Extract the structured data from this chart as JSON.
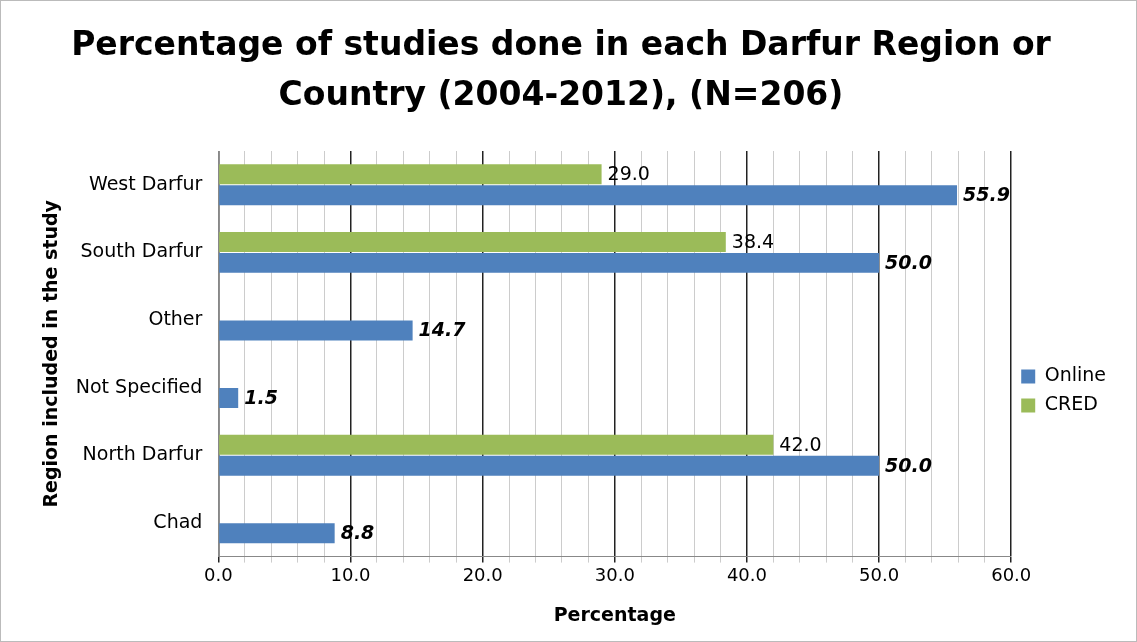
{
  "chart_data": {
    "type": "bar",
    "orientation": "horizontal",
    "title": "Percentage of studies done in each Darfur Region or Country (2004-2012), (N=206)",
    "xlabel": "Percentage",
    "ylabel": "Region included in the study",
    "categories": [
      "West Darfur",
      "South Darfur",
      "Other",
      "Not Specified",
      "North Darfur",
      "Chad"
    ],
    "series": [
      {
        "name": "CRED",
        "color": "#9bbb59",
        "values": [
          29.0,
          38.4,
          null,
          null,
          42.0,
          null
        ],
        "value_labels": [
          "29.0",
          "38.4",
          null,
          null,
          "42.0",
          null
        ]
      },
      {
        "name": "Online",
        "color": "#4f81bd",
        "values": [
          55.9,
          50.0,
          14.7,
          1.5,
          50.0,
          8.8
        ],
        "value_labels": [
          "55.9",
          "50.0",
          "14.7",
          "1.5",
          "50.0",
          "8.8"
        ]
      }
    ],
    "xlim": [
      0,
      60
    ],
    "xticks": [
      {
        "value": 0,
        "label": "0.0"
      },
      {
        "value": 2,
        "label": null
      },
      {
        "value": 4,
        "label": null
      },
      {
        "value": 6,
        "label": null
      },
      {
        "value": 8,
        "label": null
      },
      {
        "value": 10,
        "label": "10.0"
      },
      {
        "value": 12,
        "label": null
      },
      {
        "value": 14,
        "label": null
      },
      {
        "value": 16,
        "label": null
      },
      {
        "value": 18,
        "label": null
      },
      {
        "value": 20,
        "label": "20.0"
      },
      {
        "value": 22,
        "label": null
      },
      {
        "value": 24,
        "label": null
      },
      {
        "value": 26,
        "label": null
      },
      {
        "value": 28,
        "label": null
      },
      {
        "value": 30,
        "label": "30.0"
      },
      {
        "value": 32,
        "label": null
      },
      {
        "value": 34,
        "label": null
      },
      {
        "value": 36,
        "label": null
      },
      {
        "value": 38,
        "label": null
      },
      {
        "value": 40,
        "label": "40.0"
      },
      {
        "value": 42,
        "label": null
      },
      {
        "value": 44,
        "label": null
      },
      {
        "value": 46,
        "label": null
      },
      {
        "value": 48,
        "label": null
      },
      {
        "value": 50,
        "label": "50.0"
      },
      {
        "value": 52,
        "label": null
      },
      {
        "value": 54,
        "label": null
      },
      {
        "value": 56,
        "label": null
      },
      {
        "value": 58,
        "label": null
      },
      {
        "value": 60,
        "label": "60.0"
      }
    ],
    "grid": "x",
    "legend": "right"
  }
}
